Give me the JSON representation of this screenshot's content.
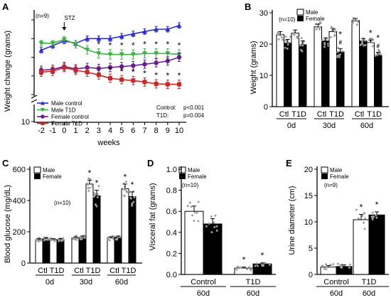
{
  "panels": [
    {
      "letter": "A",
      "ylabel": "Weight change (grams)",
      "xlabel": "weeks",
      "n_note": "(n=9)",
      "event_label": "STZ",
      "stats_lines": [
        {
          "label": "Control:",
          "value": "p<0.001"
        },
        {
          "label": "T1D:",
          "value": "p=0.004"
        }
      ]
    },
    {
      "letter": "B",
      "ylabel": "Weight (grams)",
      "n_note": "(n=10)",
      "legend": [
        "Male",
        "Female"
      ]
    },
    {
      "letter": "C",
      "ylabel": "Blood glucose (mg/dL)",
      "n_note": "(n=10)",
      "legend": [
        "Male",
        "Female"
      ]
    },
    {
      "letter": "D",
      "ylabel": "Visceral fat (grams)",
      "n_note": "(n=10)",
      "legend": [
        "Male",
        "Female"
      ]
    },
    {
      "letter": "E",
      "ylabel": "Urine diameter (cm)",
      "n_note": "(n=9)",
      "legend": [
        "Male",
        "Female"
      ]
    }
  ],
  "chart_data": [
    {
      "type": "line",
      "xlabel": "weeks",
      "ylabel": "Weight change (grams)",
      "x": [
        -2,
        -1,
        0,
        1,
        2,
        3,
        4,
        5,
        6,
        7,
        8,
        9,
        10
      ],
      "x_ticks": [
        "-2",
        "-1",
        "0",
        "1",
        "2",
        "3",
        "4",
        "5",
        "6",
        "7",
        "8",
        "9",
        "10"
      ],
      "y_ticks": [
        "14",
        "18",
        "22",
        "26",
        "30"
      ],
      "ylim": [
        14,
        30
      ],
      "y_axis_break": [
        10,
        14
      ],
      "lower_tick": "10",
      "event_marker": {
        "x": 0,
        "label": "STZ"
      },
      "series": [
        {
          "name": "Male control",
          "color": "#2b2bd6",
          "marker": "triangle-up",
          "values": [
            23.5,
            24.5,
            25.5,
            25.0,
            26.0,
            26.0,
            26.0,
            26.5,
            27.0,
            27.5,
            28.0,
            28.0,
            28.8
          ],
          "errors": [
            0.6,
            0.6,
            0.6,
            0.6,
            0.6,
            0.6,
            0.6,
            0.6,
            0.6,
            0.6,
            0.6,
            0.6,
            0.6
          ],
          "sig": [
            false,
            false,
            false,
            false,
            false,
            false,
            false,
            false,
            false,
            false,
            false,
            false,
            false
          ]
        },
        {
          "name": "Male T1D",
          "color": "#3cb043",
          "marker": "triangle-down",
          "values": [
            25.0,
            25.0,
            25.8,
            24.8,
            23.6,
            22.8,
            22.6,
            22.6,
            22.6,
            22.8,
            22.8,
            22.8,
            22.6
          ],
          "errors": [
            0.6,
            0.6,
            0.6,
            0.8,
            0.9,
            1.0,
            1.0,
            1.0,
            1.0,
            1.0,
            1.0,
            1.0,
            1.0
          ],
          "sig": [
            false,
            false,
            false,
            false,
            false,
            true,
            true,
            true,
            true,
            true,
            true,
            true,
            true
          ]
        },
        {
          "name": "Female control",
          "color": "#6a1b8f",
          "marker": "circle",
          "values": [
            19.2,
            19.4,
            20.0,
            19.5,
            19.8,
            19.6,
            19.8,
            20.0,
            20.2,
            20.5,
            20.8,
            21.2,
            22.0
          ],
          "errors": [
            0.9,
            0.9,
            0.9,
            0.9,
            0.9,
            0.9,
            0.9,
            0.9,
            0.9,
            0.9,
            0.9,
            0.9,
            0.9
          ],
          "sig": [
            false,
            false,
            false,
            false,
            false,
            false,
            false,
            false,
            false,
            false,
            false,
            false,
            false
          ]
        },
        {
          "name": "Female T1D",
          "color": "#c62828",
          "marker": "square",
          "values": [
            18.8,
            19.0,
            19.8,
            19.2,
            18.8,
            18.2,
            17.5,
            17.2,
            17.0,
            16.7,
            16.3,
            16.2,
            16.2
          ],
          "errors": [
            0.9,
            0.9,
            0.9,
            0.9,
            0.9,
            0.9,
            0.9,
            0.9,
            0.9,
            0.9,
            0.9,
            0.9,
            0.9
          ],
          "sig": [
            false,
            false,
            false,
            false,
            false,
            false,
            true,
            true,
            true,
            true,
            true,
            true,
            true
          ]
        }
      ]
    },
    {
      "type": "bar",
      "ylabel": "Weight (grams)",
      "ylim": [
        0,
        30
      ],
      "y_ticks": [
        "0",
        "10",
        "20",
        "30"
      ],
      "groups": [
        "0d",
        "30d",
        "60d"
      ],
      "conditions": [
        "Ctl",
        "T1D"
      ],
      "series": [
        {
          "name": "Male",
          "fill": "#ffffff",
          "values": [
            [
              23.0,
              23.5
            ],
            [
              25.5,
              24.0
            ],
            [
              27.5,
              20.5
            ]
          ],
          "errors": [
            [
              1.0,
              1.0
            ],
            [
              0.9,
              1.0
            ],
            [
              0.7,
              0.8
            ]
          ]
        },
        {
          "name": "Female",
          "fill": "#000000",
          "values": [
            [
              20.3,
              19.8
            ],
            [
              21.0,
              17.5
            ],
            [
              21.0,
              16.5
            ]
          ],
          "errors": [
            [
              1.2,
              1.2
            ],
            [
              1.0,
              1.0
            ],
            [
              0.8,
              0.9
            ]
          ]
        }
      ],
      "annotations": [
        {
          "group": "30d",
          "condition": "T1D",
          "series": "Female",
          "text": "*#"
        },
        {
          "group": "60d",
          "condition": "T1D",
          "series": "Male",
          "text": "*"
        },
        {
          "group": "60d",
          "condition": "T1D",
          "series": "Female",
          "text": "*#"
        }
      ]
    },
    {
      "type": "bar",
      "ylabel": "Blood glucose (mg/dL)",
      "ylim": [
        0,
        600
      ],
      "y_ticks": [
        "0",
        "200",
        "400",
        "600"
      ],
      "groups": [
        "0d",
        "30d",
        "60d"
      ],
      "conditions": [
        "Ctl",
        "T1D"
      ],
      "series": [
        {
          "name": "Male",
          "fill": "#ffffff",
          "values": [
            [
              150,
              150
            ],
            [
              160,
              505
            ],
            [
              160,
              475
            ]
          ],
          "errors": [
            [
              6,
              6
            ],
            [
              8,
              25
            ],
            [
              8,
              30
            ]
          ]
        },
        {
          "name": "Female",
          "fill": "#000000",
          "values": [
            [
              155,
              150
            ],
            [
              165,
              430
            ],
            [
              165,
              425
            ]
          ],
          "errors": [
            [
              6,
              6
            ],
            [
              8,
              35
            ],
            [
              8,
              30
            ]
          ]
        }
      ],
      "annotations": [
        {
          "group": "30d",
          "condition": "T1D",
          "series": "Male",
          "text": "*"
        },
        {
          "group": "30d",
          "condition": "T1D",
          "series": "Female",
          "text": "*"
        },
        {
          "group": "60d",
          "condition": "T1D",
          "series": "Male",
          "text": "*"
        },
        {
          "group": "60d",
          "condition": "T1D",
          "series": "Female",
          "text": "*"
        }
      ]
    },
    {
      "type": "bar",
      "ylabel": "Visceral fat (grams)",
      "ylim": [
        0,
        1.0
      ],
      "y_ticks": [
        "0.0",
        "0.2",
        "0.4",
        "0.6",
        "0.8",
        "1.0"
      ],
      "groups": [
        "Control",
        "T1D"
      ],
      "group_sublabels": [
        "60d",
        "60d"
      ],
      "series": [
        {
          "name": "Male",
          "fill": "#ffffff",
          "values": [
            0.6,
            0.06
          ],
          "errors": [
            0.05,
            0.01
          ]
        },
        {
          "name": "Female",
          "fill": "#000000",
          "values": [
            0.48,
            0.1
          ],
          "errors": [
            0.05,
            0.01
          ]
        }
      ],
      "annotations": [
        {
          "group": "T1D",
          "series": "Male",
          "text": "*"
        },
        {
          "group": "T1D",
          "series": "Female",
          "text": "*"
        }
      ]
    },
    {
      "type": "bar",
      "ylabel": "Urine diameter (cm)",
      "ylim": [
        0,
        20
      ],
      "y_ticks": [
        "0",
        "5",
        "10",
        "15",
        "20"
      ],
      "groups": [
        "Control",
        "T1D"
      ],
      "group_sublabels": [
        "60d",
        "60d"
      ],
      "series": [
        {
          "name": "Male",
          "fill": "#ffffff",
          "values": [
            1.4,
            10.4
          ],
          "errors": [
            0.3,
            1.0
          ]
        },
        {
          "name": "Female",
          "fill": "#000000",
          "values": [
            1.5,
            11.3
          ],
          "errors": [
            0.3,
            0.6
          ]
        }
      ],
      "annotations": [
        {
          "group": "T1D",
          "series": "Male",
          "text": "*"
        },
        {
          "group": "T1D",
          "series": "Female",
          "text": "*"
        }
      ]
    }
  ]
}
